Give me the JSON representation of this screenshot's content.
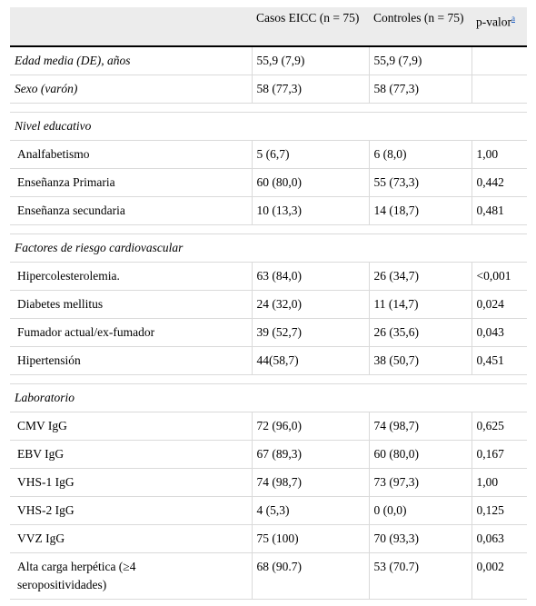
{
  "header": {
    "col1": "",
    "col2": "Casos EICC (n = 75)",
    "col3": "Controles (n = 75)",
    "col4": "p-valor",
    "col4_note": "a"
  },
  "rows": {
    "edad": {
      "label": "Edad media (DE), años",
      "casos": "55,9 (7,9)",
      "controles": "55,9 (7,9)",
      "p": ""
    },
    "sexo": {
      "label": "Sexo (varón)",
      "casos": "58 (77,3)",
      "controles": "58 (77,3)",
      "p": ""
    },
    "nivel_educativo": {
      "label": "Nivel educativo"
    },
    "analfabetismo": {
      "label": "Analfabetismo",
      "casos": "5 (6,7)",
      "controles": "6 (8,0)",
      "p": "1,00"
    },
    "primaria": {
      "label": "Enseñanza Primaria",
      "casos": "60 (80,0)",
      "controles": "55 (73,3)",
      "p": "0,442"
    },
    "secundaria": {
      "label": "Enseñanza secundaria",
      "casos": "10 (13,3)",
      "controles": "14 (18,7)",
      "p": "0,481"
    },
    "factores": {
      "label": "Factores de riesgo cardiovascular"
    },
    "hipercolesterolemia": {
      "label": "Hipercolesterolemia.",
      "casos": "63 (84,0)",
      "controles": "26 (34,7)",
      "p": "<0,001"
    },
    "diabetes": {
      "label": "Diabetes mellitus",
      "casos": "24 (32,0)",
      "controles": "11 (14,7)",
      "p": "0,024"
    },
    "fumador": {
      "label": "Fumador actual/ex-fumador",
      "casos": "39 (52,7)",
      "controles": "26 (35,6)",
      "p": "0,043"
    },
    "hipertension": {
      "label": "Hipertensión",
      "casos": "44(58,7)",
      "controles": "38 (50,7)",
      "p": "0,451"
    },
    "laboratorio": {
      "label": "Laboratorio"
    },
    "cmv": {
      "label": "CMV IgG",
      "casos": "72 (96,0)",
      "controles": "74 (98,7)",
      "p": "0,625"
    },
    "ebv": {
      "label": "EBV IgG",
      "casos": "67 (89,3)",
      "controles": "60 (80,0)",
      "p": "0,167"
    },
    "vhs1": {
      "label": "VHS-1 IgG",
      "casos": "74 (98,7)",
      "controles": "73 (97,3)",
      "p": "1,00"
    },
    "vhs2": {
      "label": "VHS-2 IgG",
      "casos": "4 (5,3)",
      "controles": "0 (0,0)",
      "p": "0,125"
    },
    "vvz": {
      "label": "VVZ IgG",
      "casos": "75 (100)",
      "controles": "70 (93,3)",
      "p": "0,063"
    },
    "carga": {
      "label": "Alta carga herpética (≥4 seropositividades)",
      "casos": "68 (90.7)",
      "controles": "53 (70.7)",
      "p": "0,002"
    }
  }
}
